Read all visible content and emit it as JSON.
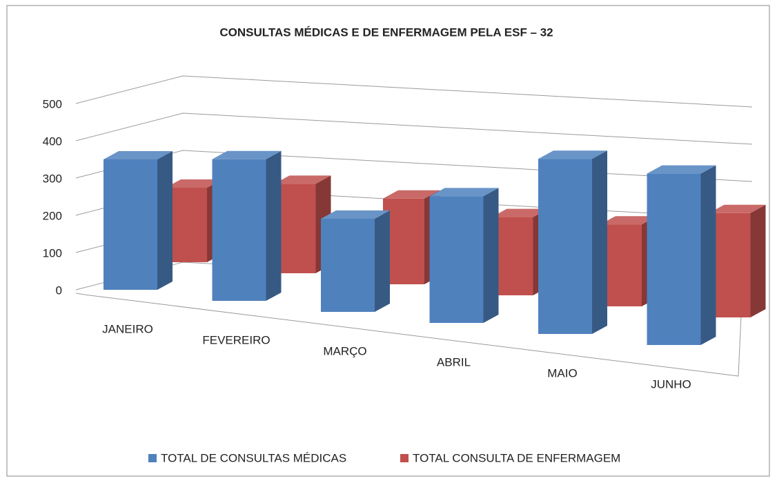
{
  "chart_data": {
    "type": "bar3d",
    "title": "CONSULTAS MÉDICAS E DE ENFERMAGEM PELA ESF – 32",
    "categories": [
      "JANEIRO",
      "FEVEREIRO",
      "MARÇO",
      "ABRIL",
      "MAIO",
      "JUNHO"
    ],
    "series": [
      {
        "name": "TOTAL DE CONSULTAS MÉDICAS",
        "color": "#4f81bd",
        "values": [
          350,
          380,
          250,
          340,
          470,
          460
        ]
      },
      {
        "name": "TOTAL CONSULTA DE ENFERMAGEM",
        "color": "#c0504d",
        "values": [
          200,
          240,
          230,
          210,
          220,
          280
        ]
      }
    ],
    "ylim": [
      0,
      500
    ],
    "yticks": [
      0,
      100,
      200,
      300,
      400,
      500
    ],
    "grid": true,
    "legend": "bottom"
  }
}
